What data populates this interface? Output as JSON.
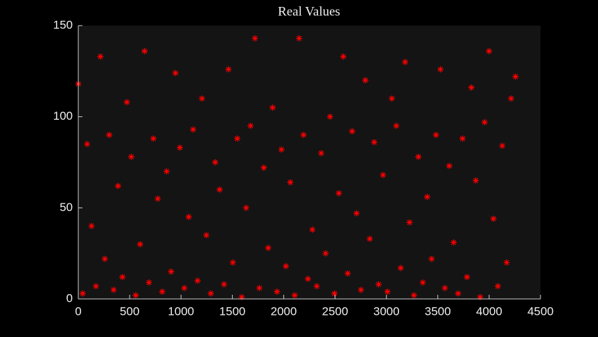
{
  "chart_data": {
    "type": "scatter",
    "title": "Real Values",
    "series": [
      {
        "color": "#ff0000",
        "x": [
          0,
          43,
          86,
          129,
          172,
          215,
          258,
          301,
          344,
          387,
          430,
          473,
          516,
          559,
          602,
          645,
          688,
          731,
          774,
          817,
          860,
          903,
          946,
          989,
          1032,
          1075,
          1118,
          1161,
          1204,
          1247,
          1290,
          1333,
          1376,
          1419,
          1462,
          1505,
          1548,
          1591,
          1634,
          1677,
          1720,
          1763,
          1806,
          1849,
          1892,
          1935,
          1978,
          2021,
          2064,
          2107,
          2150,
          2193,
          2236,
          2279,
          2322,
          2365,
          2408,
          2451,
          2494,
          2537,
          2580,
          2623,
          2666,
          2709,
          2752,
          2795,
          2838,
          2881,
          2924,
          2967,
          3010,
          3053,
          3096,
          3139,
          3182,
          3225,
          3268,
          3311,
          3354,
          3397,
          3440,
          3483,
          3526,
          3569,
          3612,
          3655,
          3698,
          3741,
          3784,
          3827,
          3870,
          3913,
          3956,
          3999,
          4042,
          4085,
          4128,
          4171,
          4214,
          4257
        ],
        "values": [
          118,
          3,
          85,
          40,
          7,
          133,
          22,
          90,
          5,
          62,
          12,
          108,
          78,
          2,
          30,
          136,
          9,
          88,
          55,
          4,
          70,
          15,
          124,
          83,
          6,
          45,
          93,
          10,
          110,
          35,
          3,
          75,
          60,
          8,
          126,
          20,
          88,
          1,
          50,
          95,
          143,
          6,
          72,
          28,
          105,
          4,
          82,
          18,
          64,
          2,
          143,
          90,
          11,
          38,
          7,
          80,
          25,
          100,
          3,
          58,
          133,
          14,
          92,
          47,
          5,
          120,
          33,
          86,
          8,
          68,
          4,
          110,
          95,
          17,
          130,
          42,
          2,
          78,
          9,
          56,
          22,
          90,
          126,
          6,
          73,
          31,
          3,
          88,
          12,
          116,
          65,
          1,
          97,
          136,
          44,
          7,
          84,
          20,
          110,
          122
        ]
      }
    ],
    "xlim": [
      0,
      4500
    ],
    "xticks": [
      0,
      500,
      1000,
      1500,
      2000,
      2500,
      3000,
      3500,
      4000,
      4500
    ],
    "ylim": [
      0,
      150
    ],
    "yticks": [
      0,
      50,
      100,
      150
    ]
  }
}
